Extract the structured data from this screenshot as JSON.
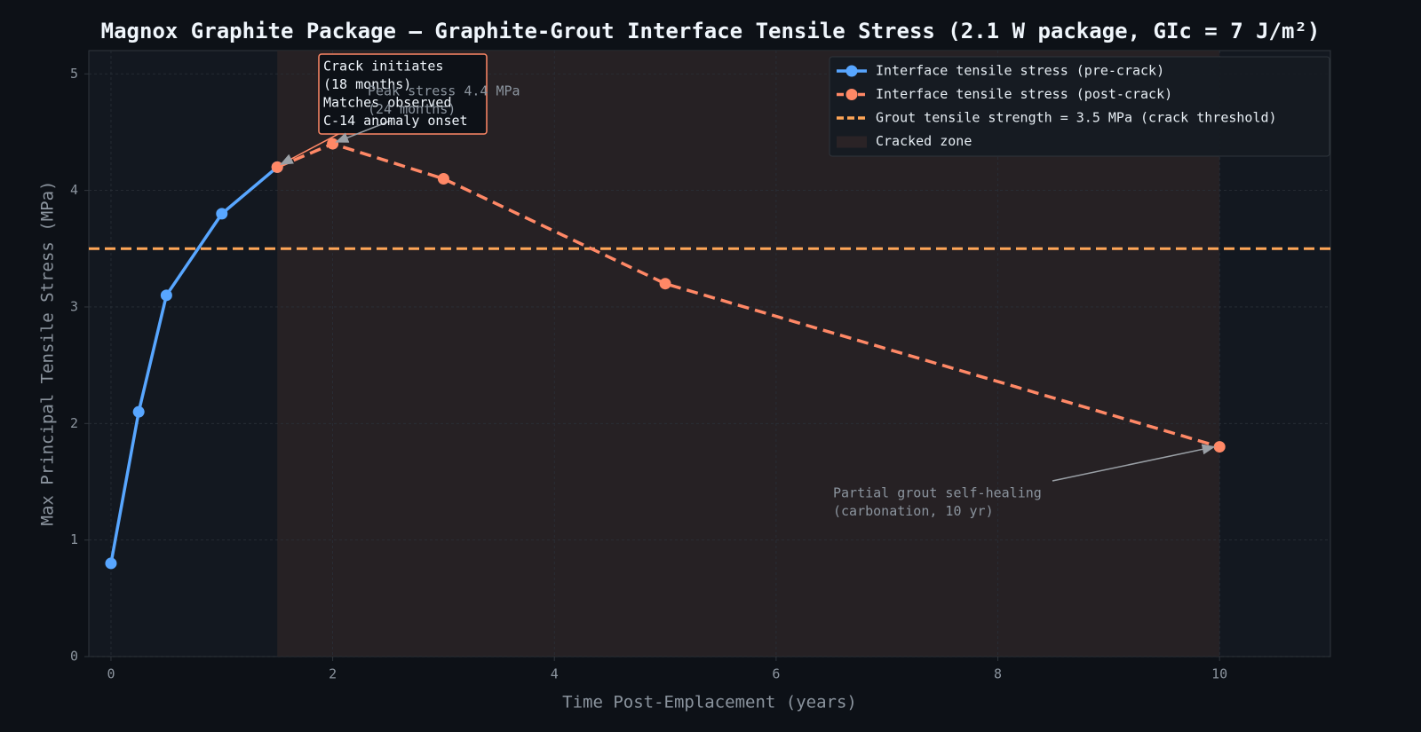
{
  "chart_data": {
    "type": "line",
    "title": "Magnox Graphite Package — Graphite-Grout Interface Tensile Stress (2.1 W package, GIc = 7 J/m²)",
    "x_label": "Time Post-Emplacement (years)",
    "y_label": "Max Principal Tensile Stress (MPa)",
    "xlim": [
      -0.2,
      11
    ],
    "ylim": [
      0,
      5.2
    ],
    "xticks": [
      0,
      2,
      4,
      6,
      8,
      10
    ],
    "yticks": [
      0,
      1,
      2,
      3,
      4,
      5
    ],
    "grid": true,
    "legend": "upper right",
    "series": [
      {
        "name": "Interface tensile stress (pre-crack)",
        "color": "#58a6ff",
        "dash": "solid",
        "x": [
          0,
          0.25,
          0.5,
          1,
          1.5
        ],
        "values": [
          0.8,
          2.1,
          3.1,
          3.8,
          4.2
        ]
      },
      {
        "name": "Interface tensile stress (post-crack)",
        "color": "#ff8866",
        "dash": "dashed",
        "x": [
          1.5,
          2,
          3,
          5,
          10
        ],
        "values": [
          4.2,
          4.4,
          4.1,
          3.2,
          1.8
        ]
      }
    ],
    "thresholds": [
      {
        "name": "Grout tensile strength = 3.5 MPa (crack threshold)",
        "value": 3.5,
        "color": "#ffa657"
      }
    ],
    "spans": [
      {
        "name": "Cracked zone",
        "x": [
          1.5,
          10
        ],
        "color": "#2a2326"
      }
    ],
    "annotations": [
      {
        "lines": [
          "Crack initiates",
          "(18 months)",
          "Matches observed",
          "C-14 anomaly onset"
        ]
      },
      {
        "lines": [
          "Peak stress 4.4 MPa",
          "(24 months)"
        ]
      },
      {
        "lines": [
          "Partial grout self-healing",
          "(carbonation, 10 yr)"
        ]
      }
    ]
  }
}
